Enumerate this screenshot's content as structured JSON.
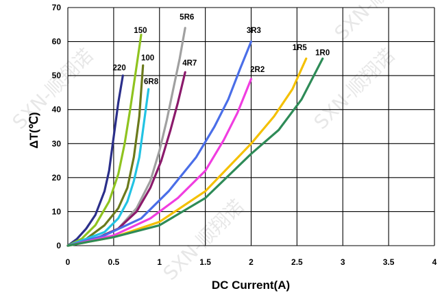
{
  "chart_data": {
    "type": "line",
    "title": "",
    "xlabel": "DC Current(A)",
    "ylabel": "ΔT(℃)",
    "xlim": [
      0,
      4
    ],
    "ylim": [
      0,
      70
    ],
    "xticks": [
      "0",
      "0.5",
      "1",
      "1.5",
      "2",
      "2.5",
      "3",
      "3.5",
      "4"
    ],
    "yticks": [
      "0",
      "10",
      "20",
      "30",
      "40",
      "50",
      "60",
      "70"
    ],
    "grid": true,
    "legend": "none",
    "series": [
      {
        "name": "220",
        "color": "#2b2f8a",
        "label_at": [
          0.49,
          51.5
        ],
        "x": [
          0,
          0.1,
          0.2,
          0.3,
          0.4,
          0.45,
          0.5,
          0.55,
          0.6
        ],
        "y": [
          0,
          2,
          5,
          9,
          16,
          22,
          32,
          42,
          50
        ]
      },
      {
        "name": "150",
        "color": "#8fc31f",
        "label_at": [
          0.72,
          62.5
        ],
        "x": [
          0,
          0.15,
          0.3,
          0.45,
          0.55,
          0.62,
          0.68,
          0.74,
          0.8
        ],
        "y": [
          0,
          2,
          6,
          13,
          21,
          30,
          40,
          51,
          62
        ]
      },
      {
        "name": "100",
        "color": "#6b7a1c",
        "label_at": [
          0.8,
          54.5
        ],
        "x": [
          0,
          0.2,
          0.4,
          0.55,
          0.65,
          0.72,
          0.78,
          0.82
        ],
        "y": [
          0,
          2,
          6,
          11,
          17,
          26,
          38,
          53
        ]
      },
      {
        "name": "6R8",
        "color": "#22c3e3",
        "label_at": [
          0.83,
          47.5
        ],
        "x": [
          0,
          0.2,
          0.4,
          0.55,
          0.65,
          0.72,
          0.78,
          0.83,
          0.88
        ],
        "y": [
          0,
          2,
          4,
          8,
          13,
          19,
          26,
          36,
          46
        ]
      },
      {
        "name": "5R6",
        "color": "#a0a0a0",
        "label_at": [
          1.22,
          66.5
        ],
        "x": [
          0,
          0.3,
          0.55,
          0.75,
          0.9,
          1.0,
          1.08,
          1.15,
          1.22,
          1.28
        ],
        "y": [
          0,
          2,
          5,
          11,
          19,
          28,
          37,
          46,
          55,
          64
        ]
      },
      {
        "name": "4R7",
        "color": "#8b1a6b",
        "label_at": [
          1.25,
          53.0
        ],
        "x": [
          0,
          0.3,
          0.55,
          0.75,
          0.9,
          1.02,
          1.12,
          1.2,
          1.28
        ],
        "y": [
          0,
          2,
          5,
          10,
          17,
          25,
          34,
          42,
          51
        ]
      },
      {
        "name": "3R3",
        "color": "#4a6ee8",
        "label_at": [
          1.95,
          62.5
        ],
        "x": [
          0,
          0.4,
          0.8,
          1.1,
          1.4,
          1.6,
          1.75,
          1.88,
          2.0
        ],
        "y": [
          0,
          3,
          8,
          16,
          26,
          35,
          43,
          52,
          60
        ]
      },
      {
        "name": "2R2",
        "color": "#f03de0",
        "label_at": [
          1.99,
          51.0
        ],
        "x": [
          0,
          0.5,
          0.9,
          1.2,
          1.5,
          1.7,
          1.85,
          2.0
        ],
        "y": [
          0,
          3,
          8,
          14,
          22,
          31,
          39,
          49
        ]
      },
      {
        "name": "1R5",
        "color": "#f4c000",
        "label_at": [
          2.45,
          57.5
        ],
        "x": [
          0,
          0.5,
          1.0,
          1.5,
          2.0,
          2.25,
          2.45,
          2.6
        ],
        "y": [
          0,
          2.5,
          7,
          16,
          30,
          38,
          46,
          55
        ]
      },
      {
        "name": "1R0",
        "color": "#2e8b57",
        "label_at": [
          2.7,
          56.0
        ],
        "x": [
          0,
          0.5,
          1.0,
          1.5,
          2.0,
          2.3,
          2.55,
          2.78
        ],
        "y": [
          0,
          2.5,
          6,
          14,
          27,
          34,
          43,
          55
        ]
      }
    ]
  },
  "watermark": [
    "SXN-顺翔诺",
    "SXN-顺翔诺",
    "SXN-顺翔诺",
    "SXN-顺翔诺"
  ]
}
